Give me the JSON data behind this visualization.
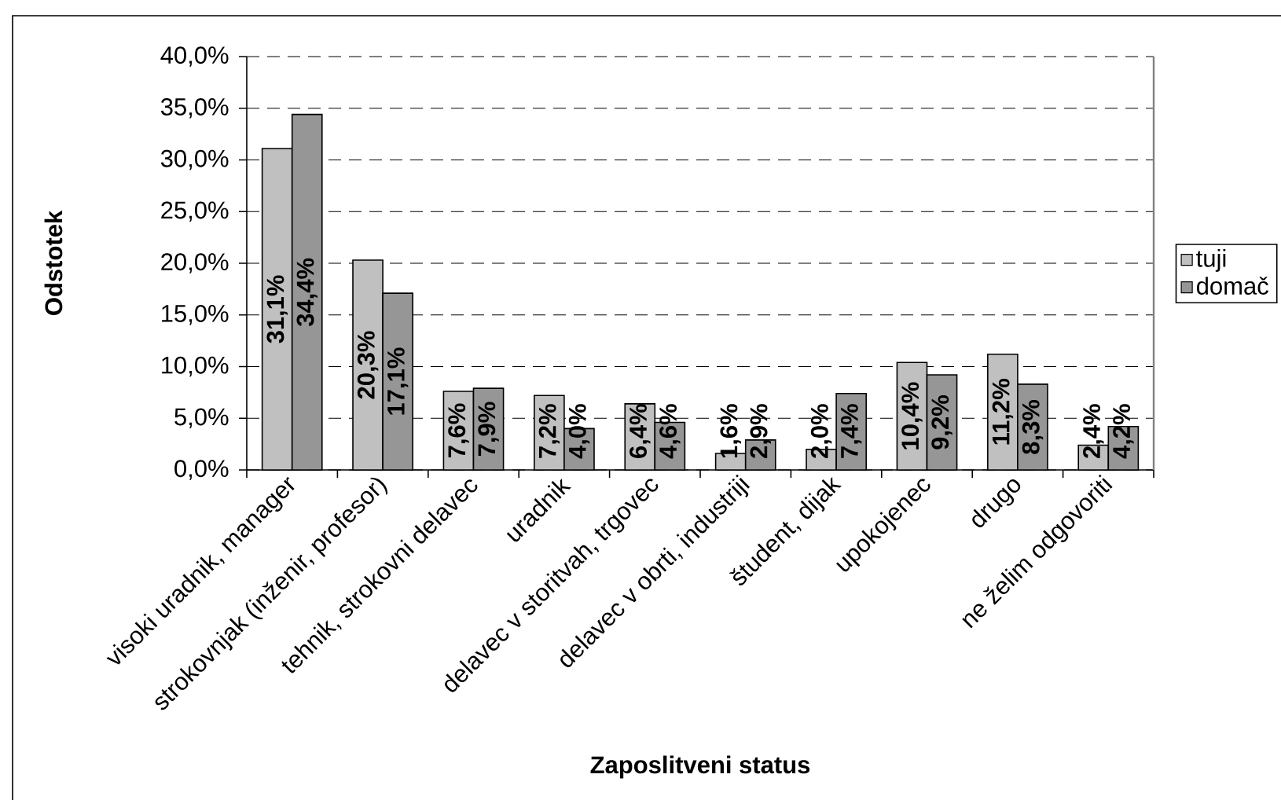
{
  "chart_data": {
    "type": "bar",
    "xlabel": "Zaposlitveni status",
    "ylabel": "Odstotek",
    "categories": [
      "visoki uradnik, manager",
      "strokovnjak (inženir, profesor)",
      "tehnik, strokovni delavec",
      "uradnik",
      "delavec v storitvah, trgovec",
      "delavec v obrti, industriji",
      "študent, dijak",
      "upokojenec",
      "drugo",
      "ne želim odgovoriti"
    ],
    "series": [
      {
        "name": "tuji",
        "color": "#c0c0c0",
        "values": [
          31.1,
          20.3,
          7.6,
          7.2,
          6.4,
          1.6,
          2.0,
          10.4,
          11.2,
          2.4
        ],
        "value_labels": [
          "31,1%",
          "20,3%",
          "7,6%",
          "7,2%",
          "6,4%",
          "1,6%",
          "2,0%",
          "10,4%",
          "11,2%",
          "2,4%"
        ]
      },
      {
        "name": "domač",
        "color": "#969696",
        "values": [
          34.4,
          17.1,
          7.9,
          4.0,
          4.6,
          2.9,
          7.4,
          9.2,
          8.3,
          4.2
        ],
        "value_labels": [
          "34,4%",
          "17,1%",
          "7,9%",
          "4,0%",
          "4,6%",
          "2,9%",
          "7,4%",
          "9,2%",
          "8,3%",
          "4,2%"
        ]
      }
    ],
    "ylim": [
      0,
      40
    ],
    "yticks": [
      {
        "value": 0,
        "label": "0,0%"
      },
      {
        "value": 5,
        "label": "5,0%"
      },
      {
        "value": 10,
        "label": "10,0%"
      },
      {
        "value": 15,
        "label": "15,0%"
      },
      {
        "value": 20,
        "label": "20,0%"
      },
      {
        "value": 25,
        "label": "25,0%"
      },
      {
        "value": 30,
        "label": "30,0%"
      },
      {
        "value": 35,
        "label": "35,0%"
      },
      {
        "value": 40,
        "label": "40,0%"
      }
    ],
    "grid": "y",
    "legend": "right"
  }
}
